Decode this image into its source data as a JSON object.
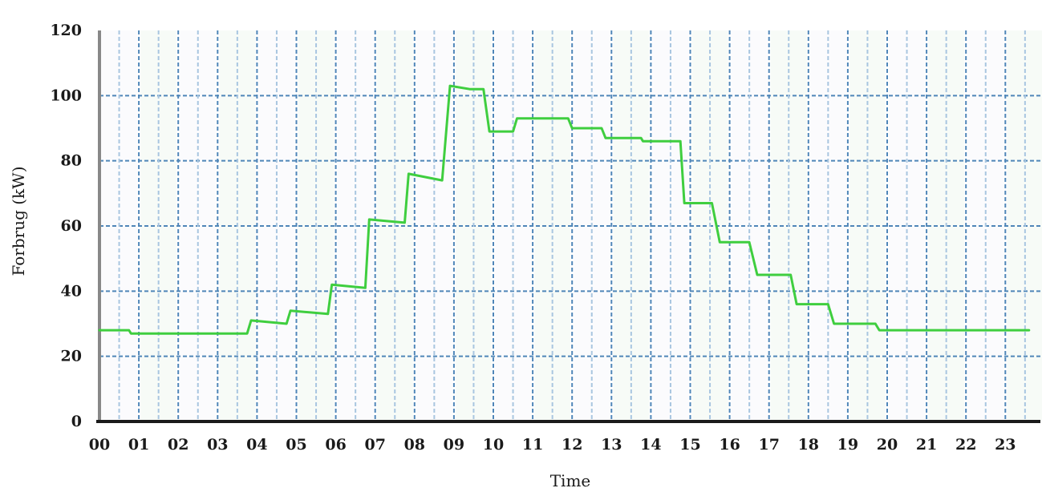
{
  "chart_data": {
    "type": "line",
    "xlabel": "Time",
    "ylabel": "Forbrug (kW)",
    "ylim": [
      0,
      120
    ],
    "yticks": [
      0,
      20,
      40,
      60,
      80,
      100,
      120
    ],
    "categories": [
      "00",
      "01",
      "02",
      "03",
      "04",
      "05",
      "06",
      "07",
      "08",
      "09",
      "10",
      "11",
      "12",
      "13",
      "14",
      "15",
      "16",
      "17",
      "18",
      "19",
      "20",
      "21",
      "22",
      "23"
    ],
    "grid": true,
    "series": [
      {
        "color": "#3fce3f",
        "x": [
          0,
          0.75,
          0.8,
          3.75,
          3.85,
          4.75,
          4.85,
          5.8,
          5.9,
          6.75,
          6.85,
          7.75,
          7.85,
          8.7,
          8.9,
          9.4,
          9.45,
          9.75,
          9.9,
          10.5,
          10.6,
          11.9,
          12.0,
          12.75,
          12.85,
          13.75,
          13.8,
          14.75,
          14.85,
          15.55,
          15.75,
          16.5,
          16.7,
          17.55,
          17.7,
          18.5,
          18.65,
          19.7,
          19.8,
          22.0,
          23.6
        ],
        "y": [
          28,
          28,
          27,
          27,
          31,
          30,
          34,
          33,
          42,
          41,
          62,
          61,
          76,
          74,
          103,
          102,
          102,
          102,
          89,
          89,
          93,
          93,
          90,
          90,
          87,
          87,
          86,
          86,
          67,
          67,
          55,
          55,
          45,
          45,
          36,
          36,
          30,
          30,
          28,
          28,
          28
        ]
      }
    ]
  }
}
